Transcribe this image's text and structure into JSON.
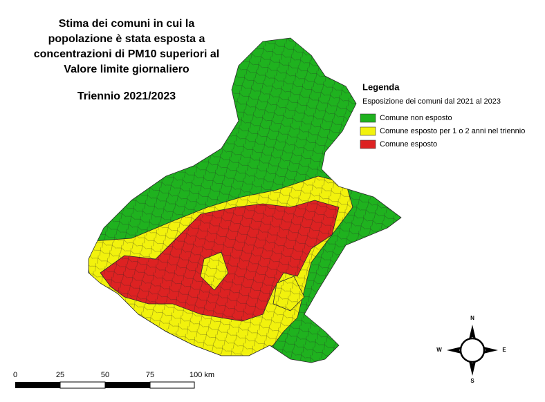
{
  "title_lines": [
    "Stima dei comuni in cui la",
    "popolazione è stata esposta a",
    "concentrazioni di PM10 superiori al",
    "Valore limite giornaliero"
  ],
  "subtitle": "Triennio 2021/2023",
  "legend": {
    "title": "Legenda",
    "subtitle": "Esposizione dei comuni dal 2021 al 2023",
    "items": [
      {
        "label": "Comune non esposto",
        "color": "#1fb21f"
      },
      {
        "label": "Comune esposto per 1 o 2 anni nel triennio",
        "color": "#f2f20d"
      },
      {
        "label": "Comune esposto",
        "color": "#dd2222"
      }
    ]
  },
  "scale_bar": {
    "labels": [
      "0",
      "25",
      "50",
      "75",
      "100 km"
    ]
  },
  "compass": {
    "north": "N",
    "south": "S",
    "east": "E",
    "west": "W"
  }
}
